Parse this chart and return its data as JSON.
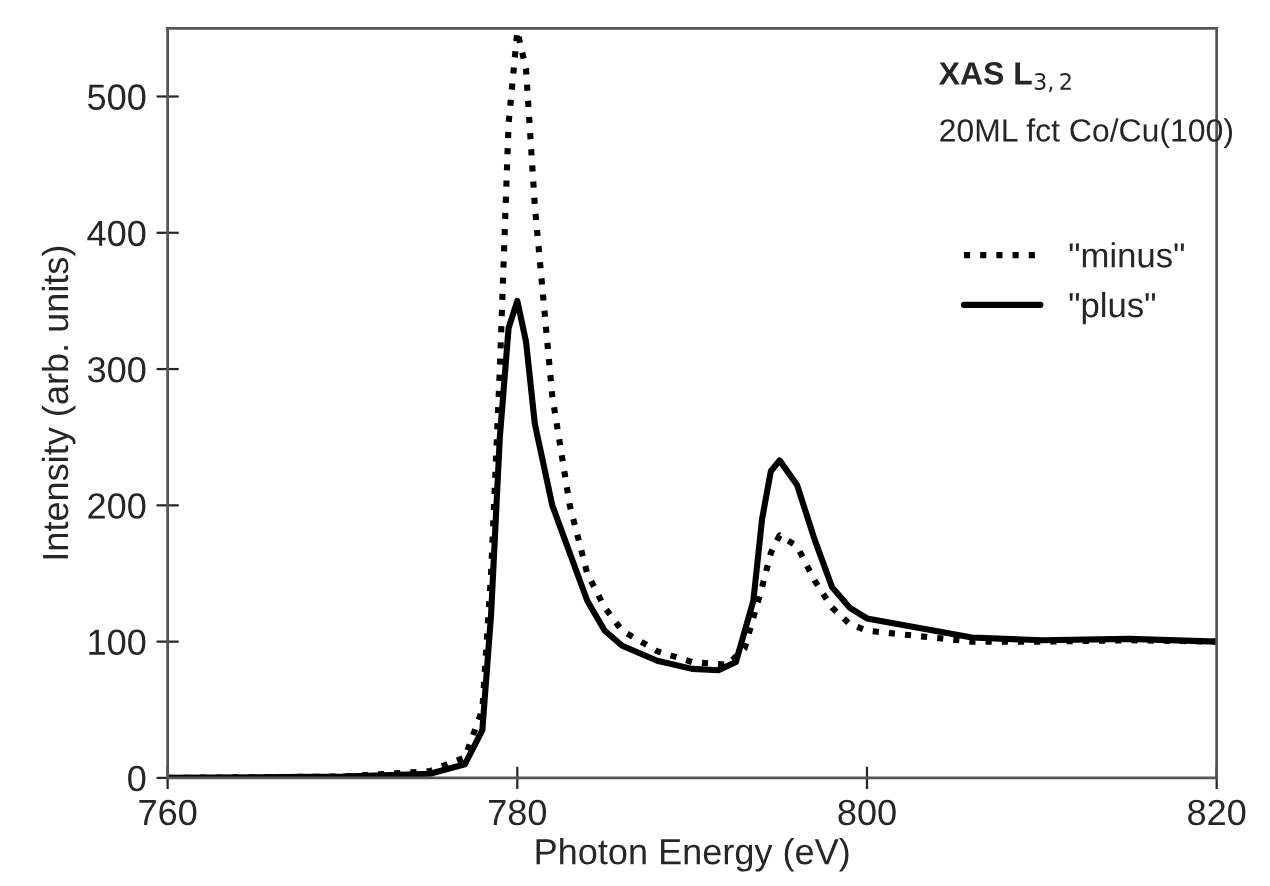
{
  "chart_data": {
    "type": "line",
    "xlabel": "Photon Energy (eV)",
    "ylabel": "Intensity (arb. units)",
    "annotations": [
      "XAS L$_{3,2}$",
      "20ML fct Co/Cu(100)"
    ],
    "xlim": [
      760,
      820
    ],
    "xticks": [
      760,
      780,
      800,
      820
    ],
    "ylim": [
      0,
      550
    ],
    "yticks": [
      0,
      100,
      200,
      300,
      400,
      500
    ],
    "grid": false,
    "legend": "right",
    "marker": "none",
    "series": [
      {
        "name": "\"minus\"",
        "color": "#000000",
        "line_style": "dotted",
        "x": [
          760,
          770,
          775,
          777,
          778,
          778.5,
          779,
          779.5,
          780,
          780.5,
          781,
          782,
          783,
          784,
          785,
          786,
          788,
          790,
          792,
          793,
          794,
          794.5,
          795,
          796,
          797,
          798,
          799,
          800,
          803,
          806,
          810,
          815,
          820
        ],
        "values": [
          0,
          1,
          5,
          15,
          50,
          150,
          300,
          480,
          548,
          520,
          420,
          280,
          200,
          150,
          125,
          108,
          93,
          85,
          83,
          95,
          140,
          165,
          178,
          170,
          145,
          125,
          113,
          108,
          104,
          100,
          100,
          101,
          100
        ]
      },
      {
        "name": "\"plus\"",
        "color": "#000000",
        "line_style": "solid",
        "x": [
          760,
          770,
          775,
          777,
          778,
          778.5,
          779,
          779.5,
          780,
          780.5,
          781,
          782,
          783,
          784,
          785,
          786,
          788,
          790,
          791.5,
          792.5,
          793.5,
          794,
          794.5,
          795,
          796,
          797,
          798,
          799,
          800,
          803,
          806,
          810,
          815,
          820
        ],
        "values": [
          0,
          1,
          3,
          10,
          35,
          120,
          250,
          330,
          350,
          320,
          260,
          200,
          165,
          130,
          108,
          97,
          86,
          80,
          79,
          85,
          130,
          190,
          225,
          233,
          215,
          175,
          140,
          125,
          117,
          110,
          103,
          101,
          102,
          100
        ]
      }
    ]
  }
}
